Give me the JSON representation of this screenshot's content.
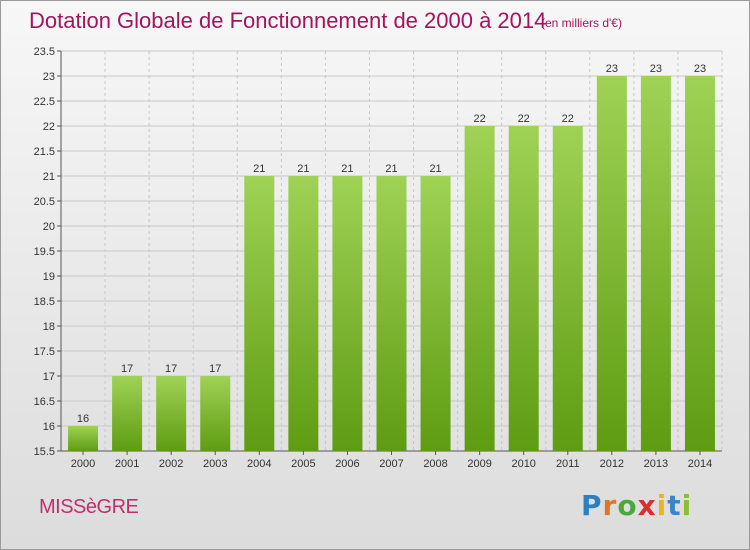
{
  "header": {
    "title": "Dotation Globale de Fonctionnement de 2000 à 2014",
    "subtitle": "(en milliers d'€)"
  },
  "footer": {
    "commune": "MISSèGRE",
    "brand_letters": [
      "P",
      "r",
      "o",
      "x",
      "i",
      "t",
      "i"
    ]
  },
  "colors": {
    "title": "#a3145c",
    "bar_light": "#9fd255",
    "bar_dark": "#5e9c12",
    "grid": "#c8c8c8"
  },
  "chart_data": {
    "type": "bar",
    "title": "Dotation Globale de Fonctionnement de 2000 à 2014",
    "subtitle": "(en milliers d'€)",
    "categories": [
      "2000",
      "2001",
      "2002",
      "2003",
      "2004",
      "2005",
      "2006",
      "2007",
      "2008",
      "2009",
      "2010",
      "2011",
      "2012",
      "2013",
      "2014"
    ],
    "values": [
      16,
      17,
      17,
      17,
      21,
      21,
      21,
      21,
      21,
      22,
      22,
      22,
      23,
      23,
      23
    ],
    "data_labels": [
      "16",
      "17",
      "17",
      "17",
      "21",
      "21",
      "21",
      "21",
      "21",
      "22",
      "22",
      "22",
      "23",
      "23",
      "23"
    ],
    "ylim": [
      15.5,
      23.5
    ],
    "yticks": [
      "15.5",
      "16",
      "16.5",
      "17",
      "17.5",
      "18",
      "18.5",
      "19",
      "19.5",
      "20",
      "20.5",
      "21",
      "21.5",
      "22",
      "22.5",
      "23",
      "23.5"
    ],
    "xlabel": "",
    "ylabel": "",
    "grid": true
  }
}
